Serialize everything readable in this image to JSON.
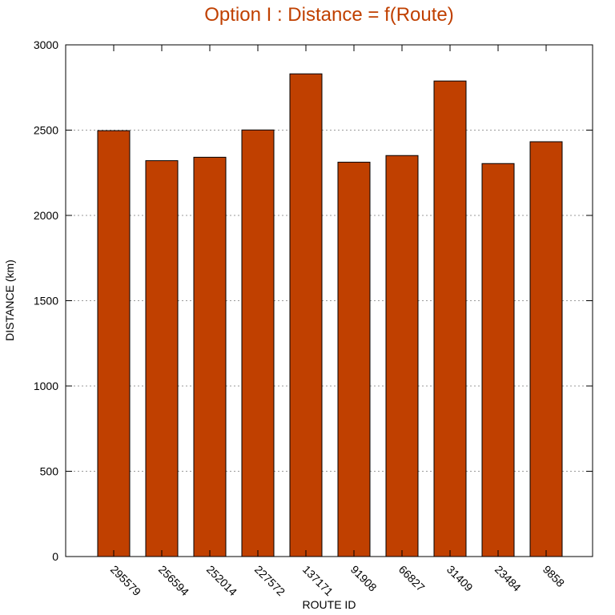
{
  "chart_data": {
    "type": "bar",
    "title": "Option I : Distance = f(Route)",
    "xlabel": "ROUTE ID",
    "ylabel": "DISTANCE (km)",
    "categories": [
      "295579",
      "256594",
      "252014",
      "227572",
      "137171",
      "91908",
      "66827",
      "31409",
      "23484",
      "9858"
    ],
    "values": [
      2497,
      2321,
      2341,
      2501,
      2830,
      2312,
      2351,
      2788,
      2304,
      2432
    ],
    "ylim": [
      0,
      3000
    ],
    "yticks": [
      0,
      500,
      1000,
      1500,
      2000,
      2500,
      3000
    ],
    "grid": true,
    "legend": false,
    "bar_color": "#c04000",
    "title_color": "#c04000"
  }
}
